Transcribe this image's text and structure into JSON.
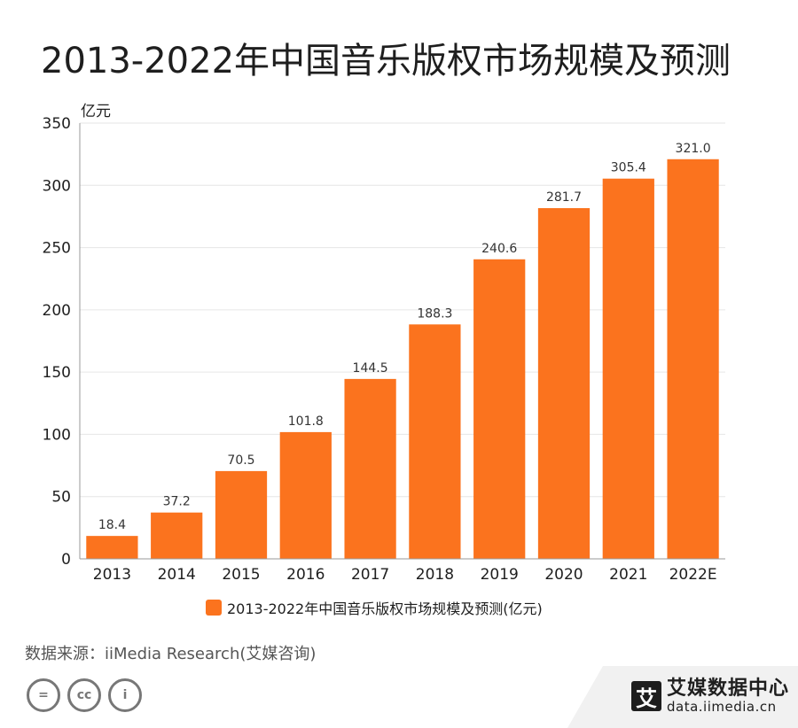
{
  "title": "2013-2022年中国音乐版权市场规模及预测",
  "unit_label": "亿元",
  "source": "数据来源：iiMedia Research(艾媒咨询)",
  "logo": {
    "name": "艾媒数据中心",
    "url": "data.iimedia.cn",
    "mark": "艾"
  },
  "license_icons": [
    "=",
    "cc",
    "i"
  ],
  "colors": {
    "bar": "#fb731e",
    "grid": "#e6e6e6",
    "axis": "#999999"
  },
  "chart_data": {
    "type": "bar",
    "title": "2013-2022年中国音乐版权市场规模及预测",
    "ylabel": "亿元",
    "xlabel": "",
    "categories": [
      "2013",
      "2014",
      "2015",
      "2016",
      "2017",
      "2018",
      "2019",
      "2020",
      "2021",
      "2022E"
    ],
    "series": [
      {
        "name": "2013-2022年中国音乐版权市场规模及预测(亿元)",
        "values": [
          18.4,
          37.2,
          70.5,
          101.8,
          144.5,
          188.3,
          240.6,
          281.7,
          305.4,
          321.0
        ],
        "labels": [
          "18.4",
          "37.2",
          "70.5",
          "101.8",
          "144.5",
          "188.3",
          "240.6",
          "281.7",
          "305.4",
          "321.0"
        ]
      }
    ],
    "ylim": [
      0,
      350
    ],
    "yticks": [
      0,
      50,
      100,
      150,
      200,
      250,
      300,
      350
    ],
    "grid": true,
    "legend": "bottom-center"
  }
}
